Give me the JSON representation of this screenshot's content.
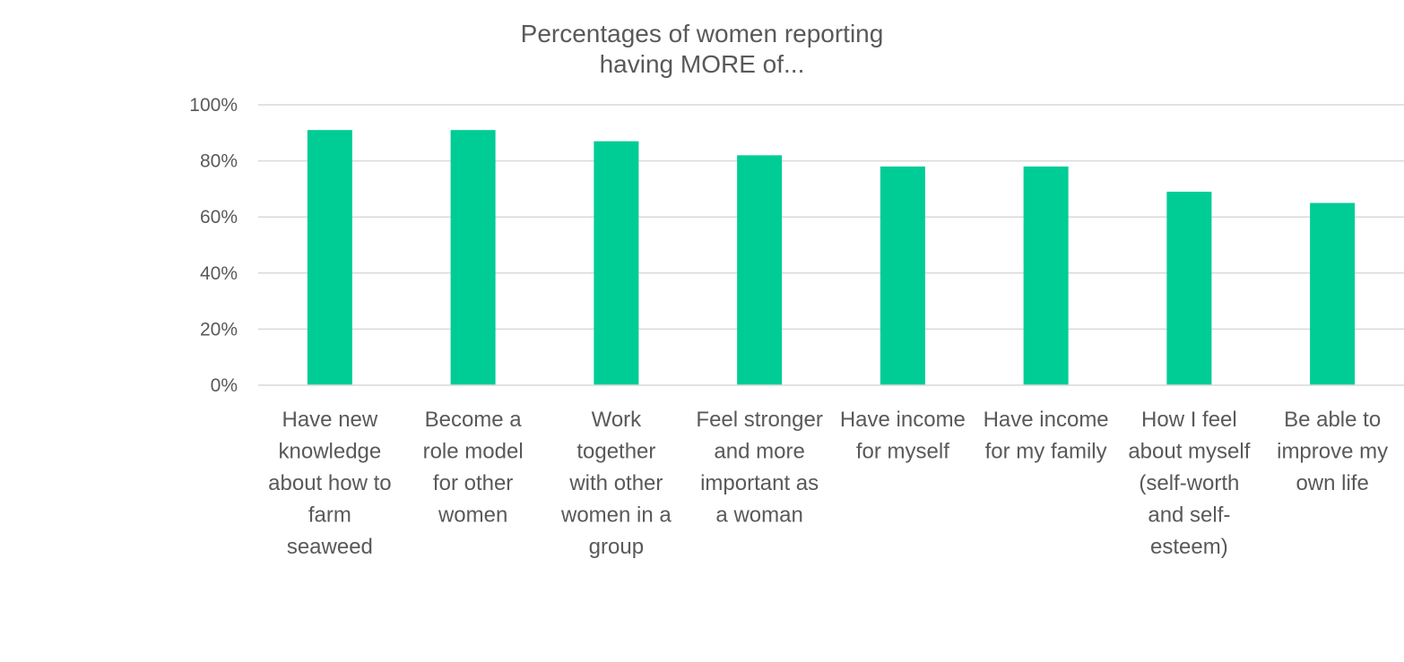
{
  "chart_data": {
    "type": "bar",
    "title": [
      "Percentages of women reporting",
      "having MORE of..."
    ],
    "categories": [
      [
        "Have new",
        "knowledge",
        "about how to",
        "farm",
        "seaweed"
      ],
      [
        "Become a",
        "role model",
        "for other",
        "women"
      ],
      [
        "Work",
        "together",
        "with other",
        "women in a",
        "group"
      ],
      [
        "Feel stronger",
        "and more",
        "important as",
        "a woman"
      ],
      [
        "Have income",
        "for myself"
      ],
      [
        "Have income",
        "for my family"
      ],
      [
        "How I feel",
        "about myself",
        "(self-worth",
        "and self-",
        "esteem)"
      ],
      [
        "Be able to",
        "improve my",
        "own life"
      ]
    ],
    "values": [
      91,
      91,
      87,
      82,
      78,
      78,
      69,
      65
    ],
    "ylim": [
      0,
      100
    ],
    "yticks": [
      0,
      20,
      40,
      60,
      80,
      100
    ],
    "ytick_labels": [
      "0%",
      "20%",
      "40%",
      "60%",
      "80%",
      "100%"
    ],
    "bar_color": "#00cc96",
    "grid": true,
    "legend": "none",
    "xlabel": "",
    "ylabel": ""
  }
}
